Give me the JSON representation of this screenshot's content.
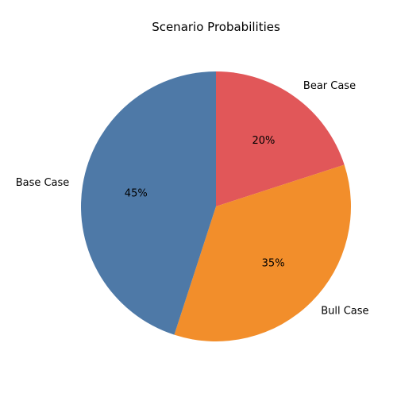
{
  "chart_data": {
    "type": "pie",
    "title": "Scenario Probabilities",
    "categories": [
      "Bear Case",
      "Bull Case",
      "Base Case"
    ],
    "values": [
      20,
      35,
      45
    ],
    "value_labels": [
      "20%",
      "35%",
      "45%"
    ],
    "colors": [
      "#e15759",
      "#f28e2b",
      "#4e79a7"
    ],
    "start_angle_deg": 90,
    "direction": "clockwise",
    "legend": "none"
  }
}
